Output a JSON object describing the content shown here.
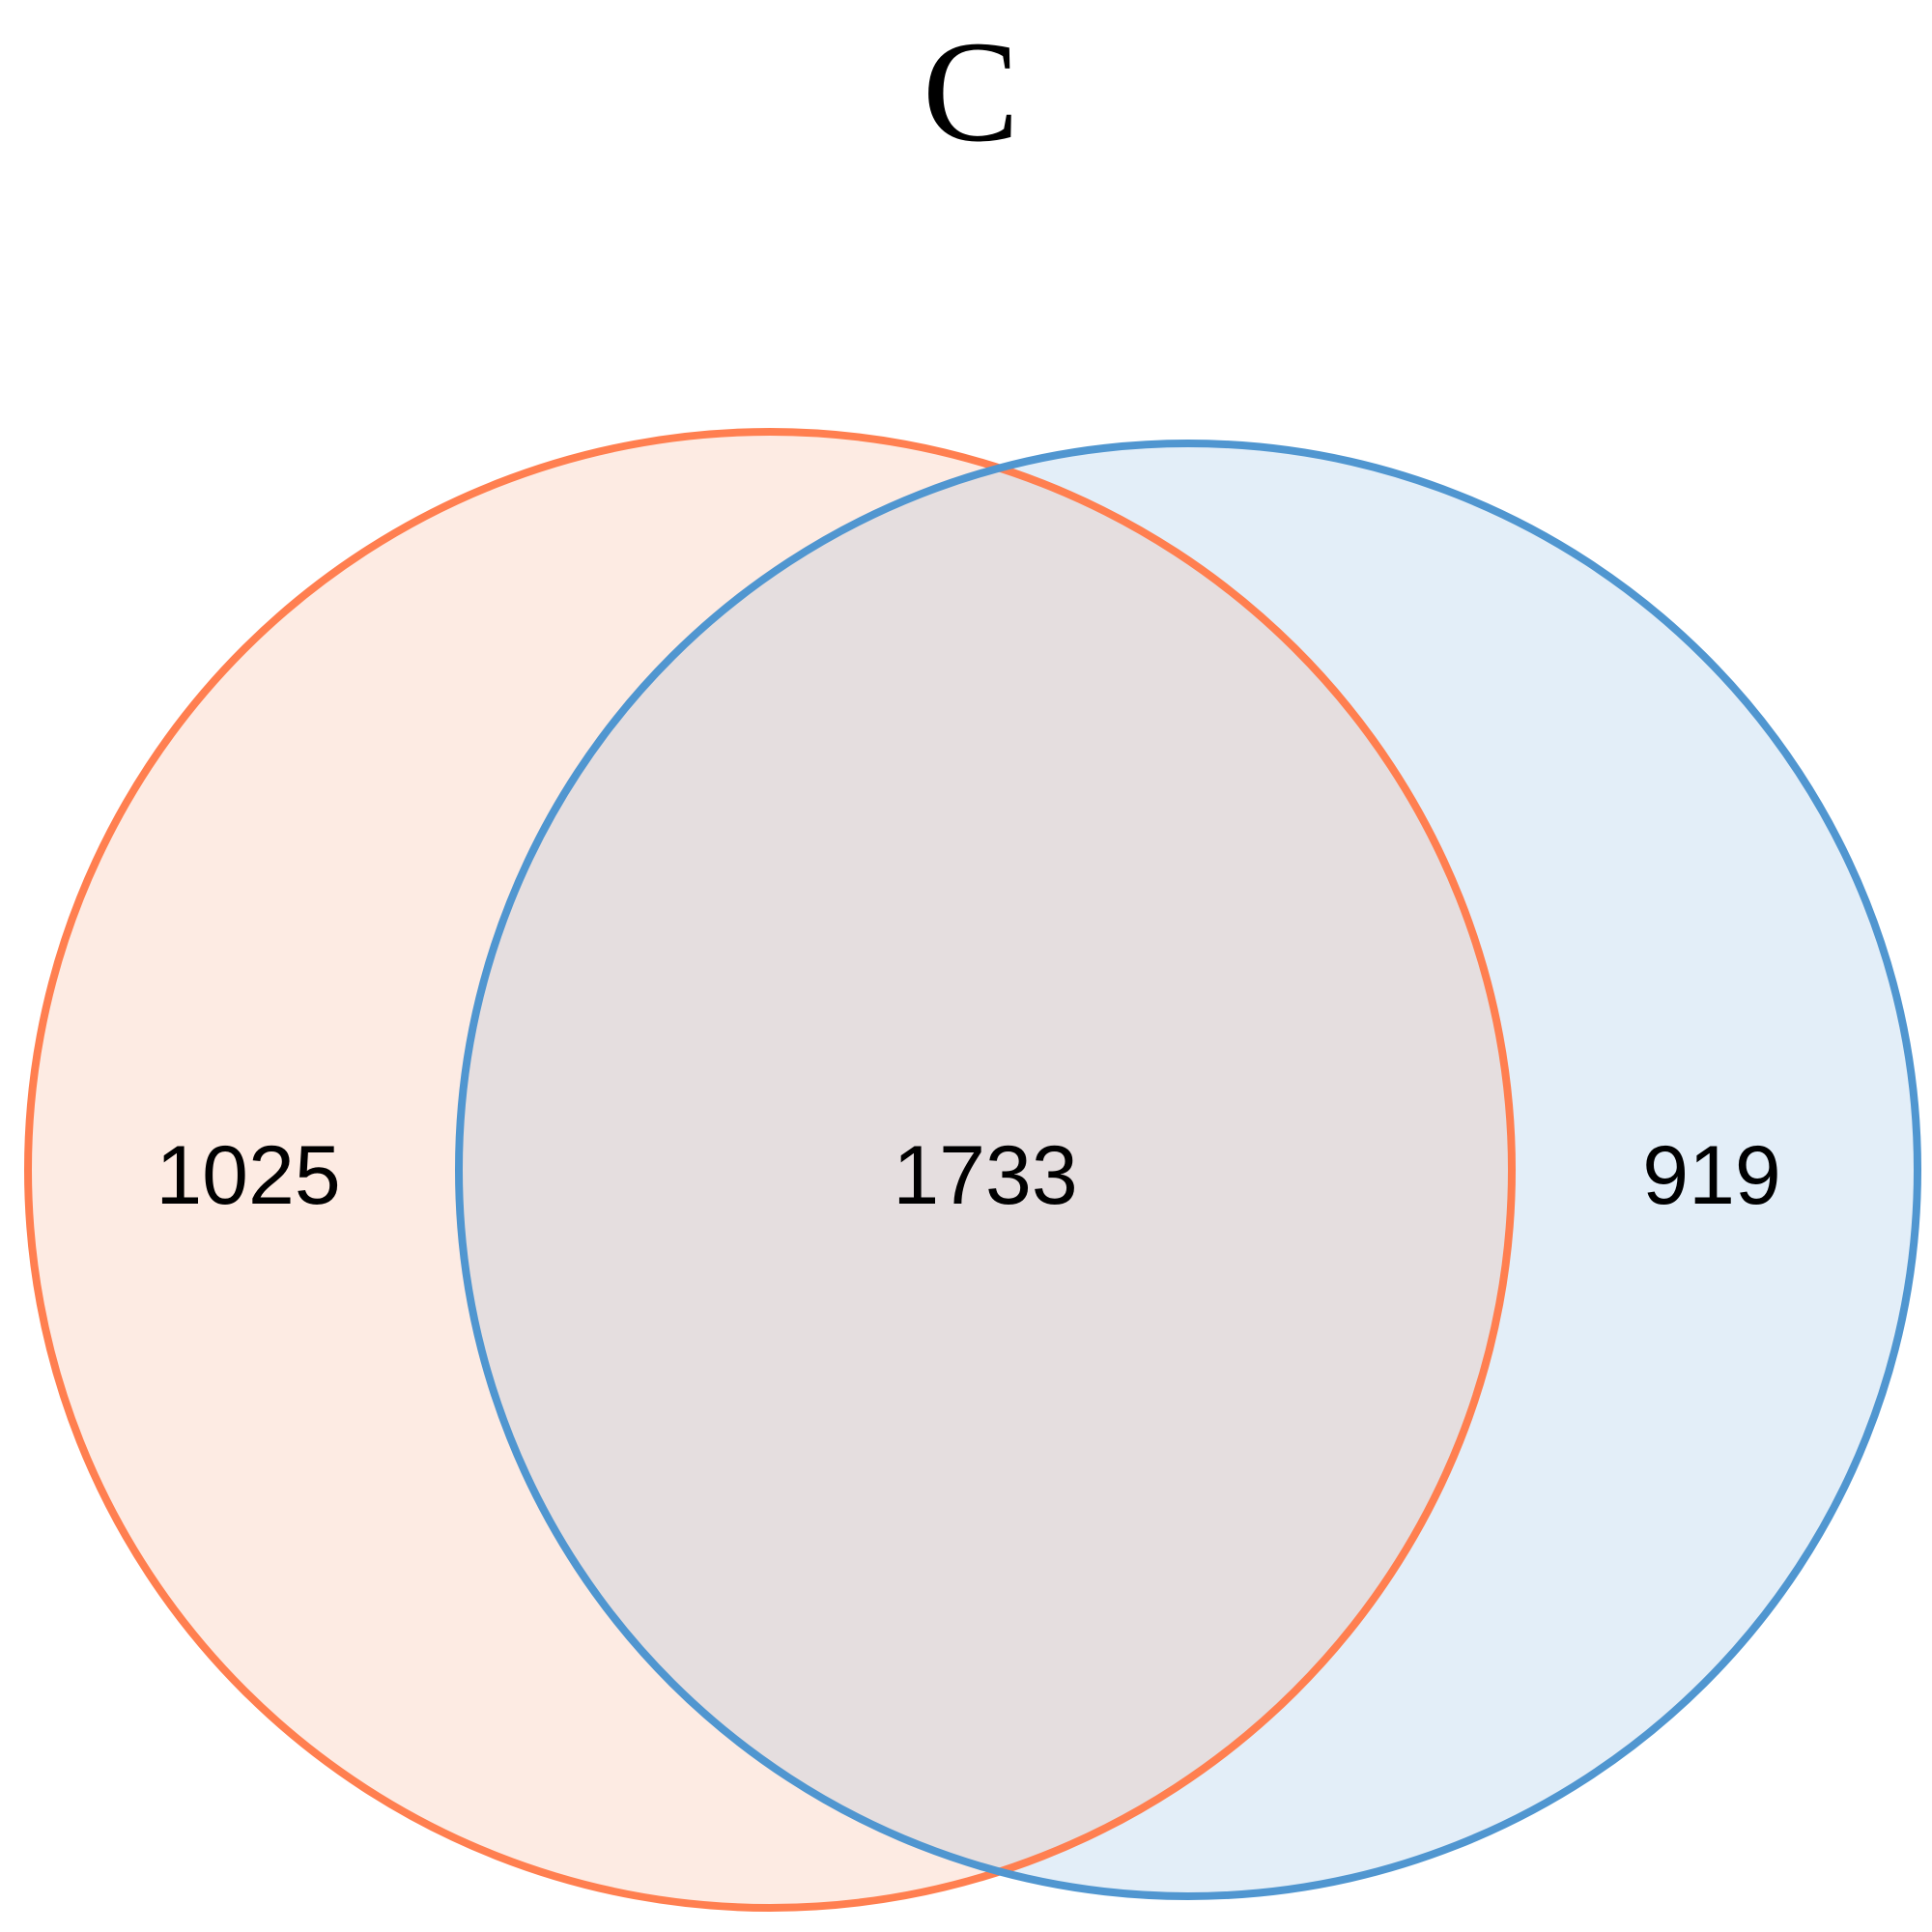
{
  "title": "C",
  "sets": [
    {
      "id": "left",
      "only_count": "1025",
      "stroke_color": "#FF7F50",
      "fill_color": "#FDEBE3"
    },
    {
      "id": "right",
      "only_count": "919",
      "stroke_color": "#5096D0",
      "fill_color": "#E3EEF8"
    }
  ],
  "intersection": {
    "count": "1733",
    "fill_color": "#E5DEDF"
  }
}
